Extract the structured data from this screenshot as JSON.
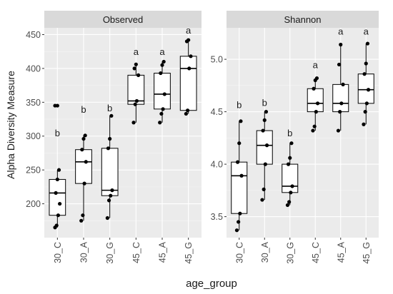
{
  "chart_data": {
    "type": "boxplot",
    "ylabel": "Alpha Diversity Measure",
    "xlabel": "age_group",
    "categories": [
      "30_C",
      "30_A",
      "30_G",
      "45_C",
      "45_A",
      "45_G"
    ],
    "panels": [
      {
        "title": "Observed",
        "ylim": [
          150,
          460
        ],
        "yticks": [
          "200",
          "250",
          "300",
          "350",
          "400",
          "450"
        ],
        "ytick_values": [
          200,
          250,
          300,
          350,
          400,
          450
        ],
        "boxes": [
          {
            "category": "30_C",
            "min": 165,
            "q1": 183,
            "median": 216,
            "q3": 236,
            "max": 250,
            "outliers": [
              345
            ],
            "points": [
              165,
              168,
              183,
              200,
              216,
              236,
              250,
              345
            ],
            "letter": "b",
            "letter_y": 305
          },
          {
            "category": "30_A",
            "min": 175,
            "q1": 230,
            "median": 262,
            "q3": 280,
            "max": 301,
            "outliers": [],
            "points": [
              175,
              183,
              230,
              262,
              280,
              296,
              301
            ],
            "letter": "b",
            "letter_y": 340
          },
          {
            "category": "30_G",
            "min": 179,
            "q1": 212,
            "median": 220,
            "q3": 282,
            "max": 330,
            "outliers": [],
            "points": [
              179,
              205,
              212,
              220,
              282,
              296,
              330
            ],
            "letter": "b",
            "letter_y": 342
          },
          {
            "category": "45_C",
            "min": 320,
            "q1": 347,
            "median": 352,
            "q3": 390,
            "max": 406,
            "outliers": [],
            "points": [
              320,
              347,
              352,
              390,
              400,
              406
            ],
            "letter": "a",
            "letter_y": 425
          },
          {
            "category": "45_A",
            "min": 320,
            "q1": 340,
            "median": 362,
            "q3": 393,
            "max": 410,
            "outliers": [],
            "points": [
              320,
              333,
              340,
              362,
              393,
              405,
              410
            ],
            "letter": "a",
            "letter_y": 425
          },
          {
            "category": "45_G",
            "min": 333,
            "q1": 338,
            "median": 400,
            "q3": 418,
            "max": 442,
            "outliers": [],
            "points": [
              333,
              338,
              400,
              418,
              440,
              442
            ],
            "letter": "a",
            "letter_y": 457
          }
        ]
      },
      {
        "title": "Shannon",
        "ylim": [
          3.3,
          5.3
        ],
        "yticks": [
          "3.5",
          "4.0",
          "4.5",
          "5.0"
        ],
        "ytick_values": [
          3.5,
          4.0,
          4.5,
          5.0
        ],
        "boxes": [
          {
            "category": "30_C",
            "min": 3.37,
            "q1": 3.53,
            "median": 3.89,
            "q3": 4.02,
            "max": 4.41,
            "outliers": [],
            "points": [
              3.37,
              3.45,
              3.53,
              3.89,
              4.02,
              4.2,
              4.41
            ],
            "letter": "b",
            "letter_y": 4.57
          },
          {
            "category": "30_A",
            "min": 3.66,
            "q1": 4.0,
            "median": 4.18,
            "q3": 4.32,
            "max": 4.5,
            "outliers": [],
            "points": [
              3.66,
              3.76,
              4.0,
              4.18,
              4.32,
              4.42,
              4.5
            ],
            "letter": "b",
            "letter_y": 4.59
          },
          {
            "category": "30_G",
            "min": 3.61,
            "q1": 3.73,
            "median": 3.79,
            "q3": 4.0,
            "max": 4.2,
            "outliers": [],
            "points": [
              3.61,
              3.64,
              3.73,
              3.79,
              4.0,
              4.06,
              4.2
            ],
            "letter": "b",
            "letter_y": 4.3
          },
          {
            "category": "45_C",
            "min": 4.32,
            "q1": 4.5,
            "median": 4.58,
            "q3": 4.72,
            "max": 4.82,
            "outliers": [],
            "points": [
              4.32,
              4.36,
              4.5,
              4.58,
              4.72,
              4.8,
              4.82
            ],
            "letter": "a",
            "letter_y": 4.95
          },
          {
            "category": "45_A",
            "min": 4.32,
            "q1": 4.5,
            "median": 4.58,
            "q3": 4.76,
            "max": 5.14,
            "outliers": [],
            "points": [
              4.32,
              4.5,
              4.58,
              4.76,
              4.95,
              5.14
            ],
            "letter": "a",
            "letter_y": 5.27
          },
          {
            "category": "45_G",
            "min": 4.38,
            "q1": 4.58,
            "median": 4.71,
            "q3": 4.86,
            "max": 5.15,
            "outliers": [],
            "points": [
              4.38,
              4.5,
              4.58,
              4.71,
              4.86,
              4.96,
              5.15
            ],
            "letter": "a",
            "letter_y": 5.27
          }
        ]
      }
    ],
    "grid": true,
    "legend": "none"
  },
  "colors": {
    "panel_bg": "#ebebeb",
    "strip_bg": "#d9d9d9",
    "grid_major": "#ffffff",
    "box_fill": "#ffffff",
    "box_stroke": "#000000",
    "point": "#000000",
    "tick_label": "#4d4d4d"
  }
}
